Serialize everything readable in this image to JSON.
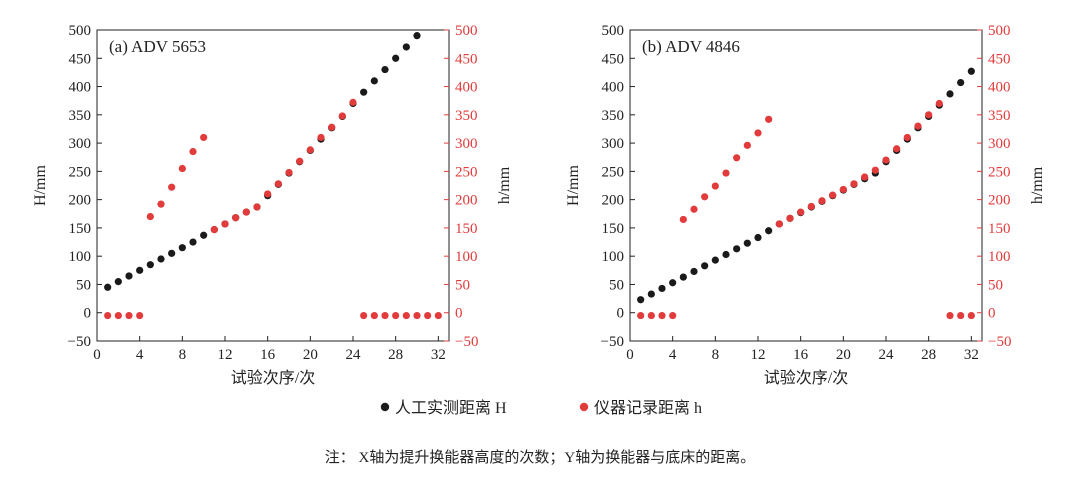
{
  "chart_data": [
    {
      "type": "scatter",
      "title": "(a) ADV 5653",
      "xlabel": "试验次序/次",
      "ylabel_left": "H/mm",
      "ylabel_right": "h/mm",
      "xlim": [
        0,
        33
      ],
      "ylim": [
        -50,
        500
      ],
      "x_ticks": [
        0,
        4,
        8,
        12,
        16,
        20,
        24,
        28,
        32
      ],
      "y_ticks": [
        -50,
        0,
        50,
        100,
        150,
        200,
        250,
        300,
        350,
        400,
        450,
        500
      ],
      "series": [
        {
          "name": "人工实测距离 H",
          "color": "#1a1a1a",
          "x": [
            1,
            2,
            3,
            4,
            5,
            6,
            7,
            8,
            9,
            10,
            11,
            12,
            13,
            14,
            15,
            16,
            17,
            18,
            19,
            20,
            21,
            22,
            23,
            24,
            25,
            26,
            27,
            28,
            29,
            30
          ],
          "y": [
            45,
            55,
            65,
            75,
            85,
            95,
            105,
            115,
            125,
            137,
            147,
            157,
            168,
            178,
            187,
            207,
            227,
            247,
            267,
            287,
            307,
            327,
            347,
            370,
            390,
            410,
            430,
            450,
            470,
            490
          ]
        },
        {
          "name": "仪器记录距离 h",
          "color": "#e23b3b",
          "x": [
            1,
            2,
            3,
            4,
            5,
            6,
            7,
            8,
            9,
            10,
            11,
            12,
            13,
            14,
            15,
            16,
            17,
            18,
            19,
            20,
            21,
            22,
            23,
            24,
            25,
            26,
            27,
            28,
            29,
            30,
            31,
            32
          ],
          "y": [
            -5,
            -5,
            -5,
            -5,
            170,
            192,
            222,
            255,
            285,
            310,
            147,
            157,
            168,
            178,
            187,
            210,
            228,
            248,
            268,
            288,
            310,
            328,
            348,
            372,
            -5,
            -5,
            -5,
            -5,
            -5,
            -5,
            -5,
            -5
          ]
        }
      ]
    },
    {
      "type": "scatter",
      "title": "(b) ADV 4846",
      "xlabel": "试验次序/次",
      "ylabel_left": "H/mm",
      "ylabel_right": "h/mm",
      "xlim": [
        0,
        33
      ],
      "ylim": [
        -50,
        500
      ],
      "x_ticks": [
        0,
        4,
        8,
        12,
        16,
        20,
        24,
        28,
        32
      ],
      "y_ticks": [
        -50,
        0,
        50,
        100,
        150,
        200,
        250,
        300,
        350,
        400,
        450,
        500
      ],
      "series": [
        {
          "name": "人工实测距离 H",
          "color": "#1a1a1a",
          "x": [
            1,
            2,
            3,
            4,
            5,
            6,
            7,
            8,
            9,
            10,
            11,
            12,
            13,
            14,
            15,
            16,
            17,
            18,
            19,
            20,
            21,
            22,
            23,
            24,
            25,
            26,
            27,
            28,
            29,
            30,
            31,
            32
          ],
          "y": [
            23,
            33,
            43,
            53,
            63,
            73,
            83,
            93,
            103,
            113,
            123,
            133,
            145,
            157,
            167,
            177,
            187,
            197,
            207,
            217,
            227,
            237,
            247,
            267,
            287,
            307,
            327,
            347,
            367,
            387,
            407,
            427
          ]
        },
        {
          "name": "仪器记录距离 h",
          "color": "#e23b3b",
          "x": [
            1,
            2,
            3,
            4,
            5,
            6,
            7,
            8,
            9,
            10,
            11,
            12,
            13,
            14,
            15,
            16,
            17,
            18,
            19,
            20,
            21,
            22,
            23,
            24,
            25,
            26,
            27,
            28,
            29,
            30,
            31,
            32
          ],
          "y": [
            -5,
            -5,
            -5,
            -5,
            165,
            183,
            205,
            224,
            247,
            274,
            296,
            318,
            342,
            157,
            167,
            178,
            188,
            198,
            208,
            218,
            228,
            240,
            252,
            270,
            290,
            310,
            330,
            350,
            370,
            -5,
            -5,
            -5
          ]
        }
      ]
    }
  ],
  "legend": {
    "item1": "人工实测距离 H",
    "item2": "仪器记录距离 h",
    "color1": "#1a1a1a",
    "color2": "#e23b3b",
    "placement": "bottom-center"
  },
  "note": "注： X轴为提升换能器高度的次数；Y轴为换能器与底床的距离。"
}
